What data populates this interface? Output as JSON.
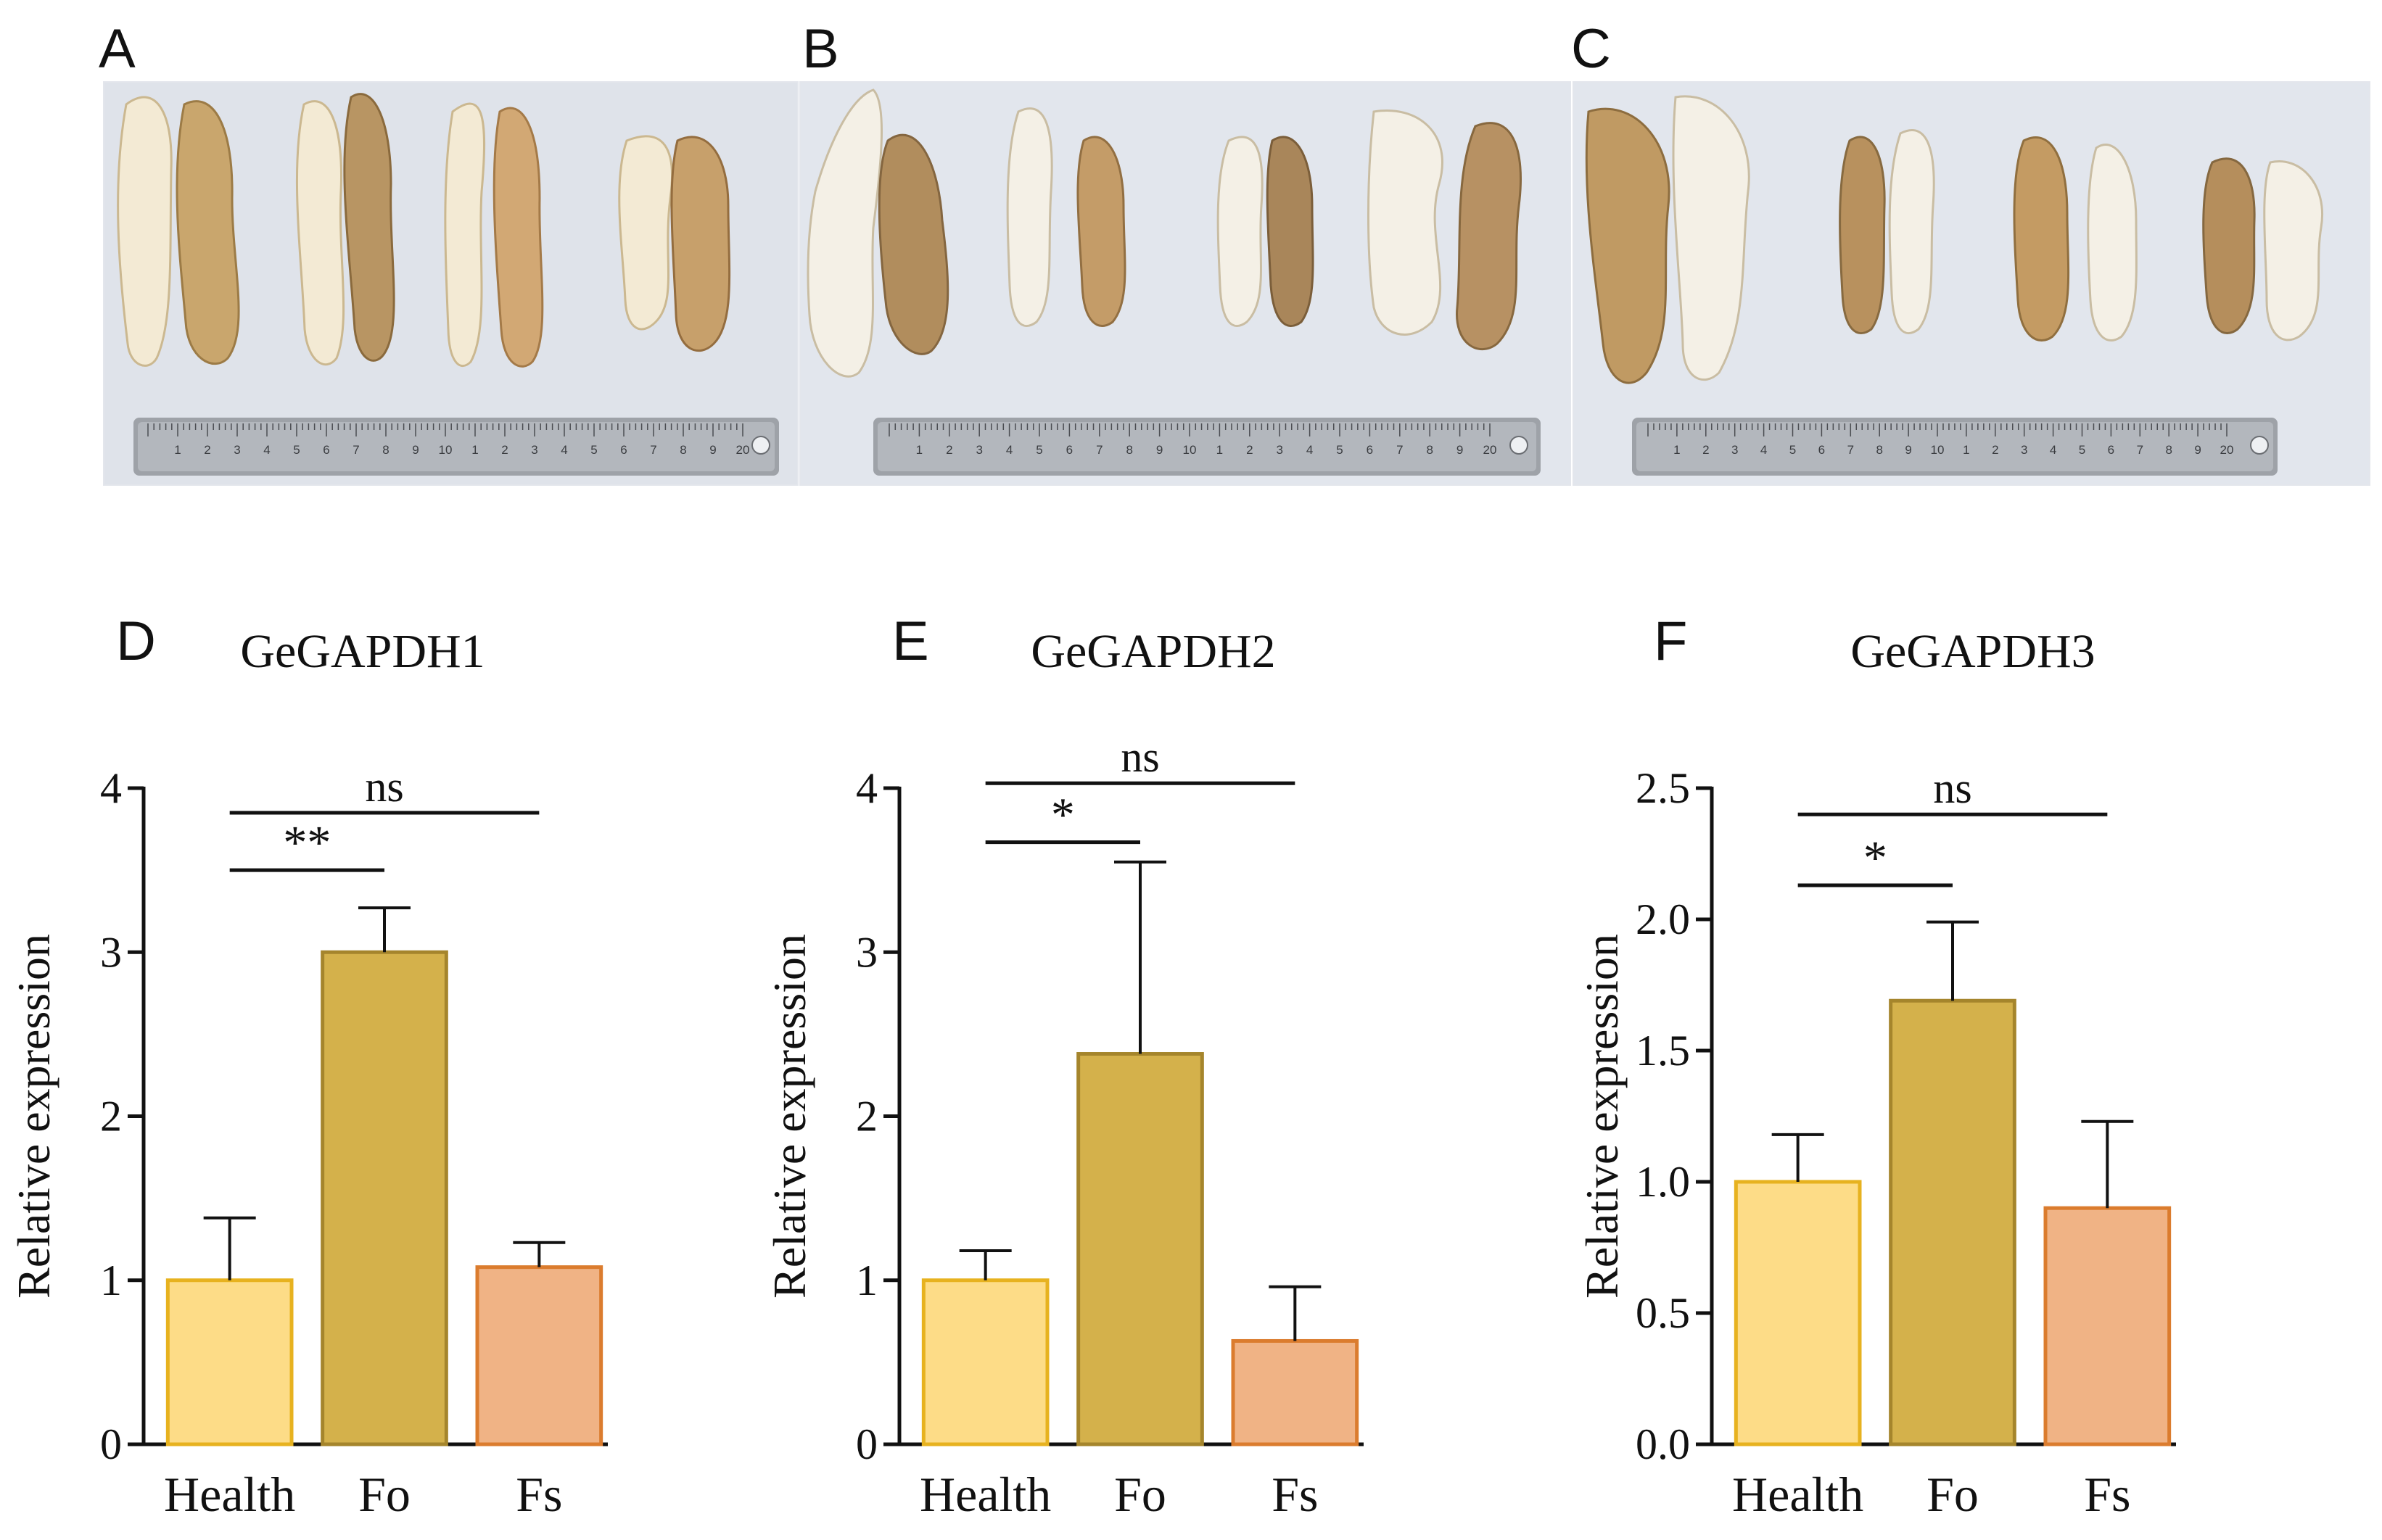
{
  "photo_panels": [
    {
      "letter": "A"
    },
    {
      "letter": "B"
    },
    {
      "letter": "C"
    }
  ],
  "ruler": {
    "numbers": [
      "1",
      "2",
      "3",
      "4",
      "5",
      "6",
      "7",
      "8",
      "9",
      "10",
      "1",
      "2",
      "3",
      "4",
      "5",
      "6",
      "7",
      "8",
      "9",
      "20"
    ]
  },
  "chart_data": [
    {
      "type": "bar",
      "panel": "D",
      "title": "GeGAPDH1",
      "xlabel": "",
      "ylabel": "Relative expression",
      "categories": [
        "Health",
        "Fo",
        "Fs"
      ],
      "values": [
        1.0,
        3.0,
        1.08
      ],
      "errors": [
        0.38,
        0.27,
        0.15
      ],
      "ylim": [
        0,
        4
      ],
      "yticks": [
        "0",
        "1",
        "2",
        "3",
        "4"
      ],
      "colors": {
        "fill": [
          "#fddc87",
          "#d4b14b",
          "#f0b385"
        ],
        "stroke": [
          "#e7b21f",
          "#a5852c",
          "#db7c2e"
        ]
      },
      "annotations": [
        {
          "from": 0,
          "to": 2,
          "label": "ns",
          "y": 3.85
        },
        {
          "from": 0,
          "to": 1,
          "label": "**",
          "y": 3.5
        }
      ]
    },
    {
      "type": "bar",
      "panel": "E",
      "title": "GeGAPDH2",
      "xlabel": "",
      "ylabel": "Relative expression",
      "categories": [
        "Health",
        "Fo",
        "Fs"
      ],
      "values": [
        1.0,
        2.38,
        0.63
      ],
      "errors": [
        0.18,
        1.17,
        0.33
      ],
      "ylim": [
        0,
        4
      ],
      "yticks": [
        "0",
        "1",
        "2",
        "3",
        "4"
      ],
      "colors": {
        "fill": [
          "#fddc87",
          "#d4b14b",
          "#f0b385"
        ],
        "stroke": [
          "#e7b21f",
          "#a5852c",
          "#db7c2e"
        ]
      },
      "annotations": [
        {
          "from": 0,
          "to": 2,
          "label": "ns",
          "y": 4.03
        },
        {
          "from": 0,
          "to": 1,
          "label": "*",
          "y": 3.67
        }
      ]
    },
    {
      "type": "bar",
      "panel": "F",
      "title": "GeGAPDH3",
      "xlabel": "",
      "ylabel": "Relative expression",
      "categories": [
        "Health",
        "Fo",
        "Fs"
      ],
      "values": [
        1.0,
        1.69,
        0.9
      ],
      "errors": [
        0.18,
        0.3,
        0.33
      ],
      "ylim": [
        0,
        2.5
      ],
      "yticks": [
        "0.0",
        "0.5",
        "1.0",
        "1.5",
        "2.0",
        "2.5"
      ],
      "colors": {
        "fill": [
          "#fddc87",
          "#d4b14b",
          "#f0b385"
        ],
        "stroke": [
          "#e7b21f",
          "#a5852c",
          "#db7c2e"
        ]
      },
      "annotations": [
        {
          "from": 0,
          "to": 2,
          "label": "ns",
          "y": 2.4
        },
        {
          "from": 0,
          "to": 1,
          "label": "*",
          "y": 2.13
        }
      ]
    }
  ]
}
